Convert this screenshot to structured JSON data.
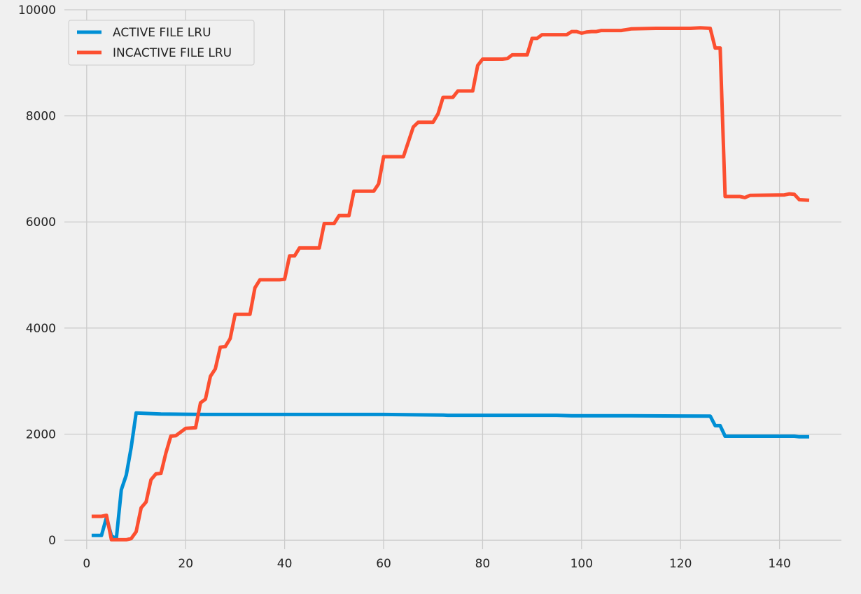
{
  "chart_data": {
    "type": "line",
    "title": "",
    "xlabel": "",
    "ylabel": "",
    "xlim": [
      -4.5,
      152.5
    ],
    "ylim": [
      -170,
      10000
    ],
    "x_ticks": [
      0,
      20,
      40,
      60,
      80,
      100,
      120,
      140
    ],
    "y_ticks": [
      0,
      2000,
      4000,
      6000,
      8000,
      10000
    ],
    "grid": true,
    "legend_position": "top-left",
    "series": [
      {
        "name": "ACTIVE FILE LRU",
        "color": "#008fd5",
        "points": [
          [
            1,
            90
          ],
          [
            3,
            90
          ],
          [
            4,
            430
          ],
          [
            5,
            80
          ],
          [
            6,
            30
          ],
          [
            7,
            950
          ],
          [
            8,
            1230
          ],
          [
            9,
            1750
          ],
          [
            10,
            2400
          ],
          [
            12,
            2390
          ],
          [
            15,
            2380
          ],
          [
            20,
            2375
          ],
          [
            24,
            2370
          ],
          [
            60,
            2370
          ],
          [
            65,
            2365
          ],
          [
            72,
            2360
          ],
          [
            73,
            2355
          ],
          [
            95,
            2355
          ],
          [
            98,
            2345
          ],
          [
            100,
            2345
          ],
          [
            110,
            2345
          ],
          [
            120,
            2342
          ],
          [
            126,
            2340
          ],
          [
            127,
            2160
          ],
          [
            128,
            2160
          ],
          [
            129,
            1960
          ],
          [
            130,
            1960
          ],
          [
            140,
            1960
          ],
          [
            143,
            1960
          ],
          [
            144,
            1950
          ],
          [
            146,
            1950
          ]
        ]
      },
      {
        "name": "INCACTIVE FILE LRU",
        "color": "#fc4f30",
        "points": [
          [
            1,
            450
          ],
          [
            3,
            450
          ],
          [
            4,
            470
          ],
          [
            5,
            10
          ],
          [
            8,
            10
          ],
          [
            9,
            30
          ],
          [
            10,
            160
          ],
          [
            11,
            610
          ],
          [
            12,
            720
          ],
          [
            13,
            1140
          ],
          [
            14,
            1250
          ],
          [
            15,
            1260
          ],
          [
            16,
            1640
          ],
          [
            17,
            1960
          ],
          [
            18,
            1970
          ],
          [
            20,
            2110
          ],
          [
            22,
            2120
          ],
          [
            23,
            2590
          ],
          [
            24,
            2660
          ],
          [
            25,
            3090
          ],
          [
            26,
            3230
          ],
          [
            27,
            3640
          ],
          [
            28,
            3650
          ],
          [
            29,
            3800
          ],
          [
            30,
            4260
          ],
          [
            33,
            4260
          ],
          [
            34,
            4760
          ],
          [
            35,
            4910
          ],
          [
            39,
            4910
          ],
          [
            40,
            4920
          ],
          [
            41,
            5360
          ],
          [
            42,
            5360
          ],
          [
            43,
            5510
          ],
          [
            47,
            5510
          ],
          [
            48,
            5970
          ],
          [
            50,
            5970
          ],
          [
            51,
            6120
          ],
          [
            53,
            6120
          ],
          [
            54,
            6580
          ],
          [
            58,
            6580
          ],
          [
            59,
            6720
          ],
          [
            60,
            7230
          ],
          [
            64,
            7230
          ],
          [
            66,
            7790
          ],
          [
            67,
            7880
          ],
          [
            70,
            7880
          ],
          [
            71,
            8040
          ],
          [
            72,
            8350
          ],
          [
            74,
            8350
          ],
          [
            75,
            8470
          ],
          [
            78,
            8470
          ],
          [
            79,
            8950
          ],
          [
            80,
            9070
          ],
          [
            84,
            9070
          ],
          [
            85,
            9080
          ],
          [
            86,
            9150
          ],
          [
            89,
            9150
          ],
          [
            90,
            9460
          ],
          [
            91,
            9460
          ],
          [
            92,
            9530
          ],
          [
            97,
            9530
          ],
          [
            98,
            9590
          ],
          [
            99,
            9590
          ],
          [
            100,
            9560
          ],
          [
            101,
            9580
          ],
          [
            102,
            9590
          ],
          [
            103,
            9590
          ],
          [
            104,
            9610
          ],
          [
            108,
            9610
          ],
          [
            110,
            9640
          ],
          [
            115,
            9650
          ],
          [
            122,
            9650
          ],
          [
            124,
            9660
          ],
          [
            126,
            9650
          ],
          [
            127,
            9280
          ],
          [
            128,
            9280
          ],
          [
            129,
            6480
          ],
          [
            132,
            6480
          ],
          [
            133,
            6460
          ],
          [
            134,
            6500
          ],
          [
            141,
            6510
          ],
          [
            142,
            6530
          ],
          [
            143,
            6520
          ],
          [
            144,
            6420
          ],
          [
            146,
            6410
          ]
        ]
      }
    ]
  }
}
